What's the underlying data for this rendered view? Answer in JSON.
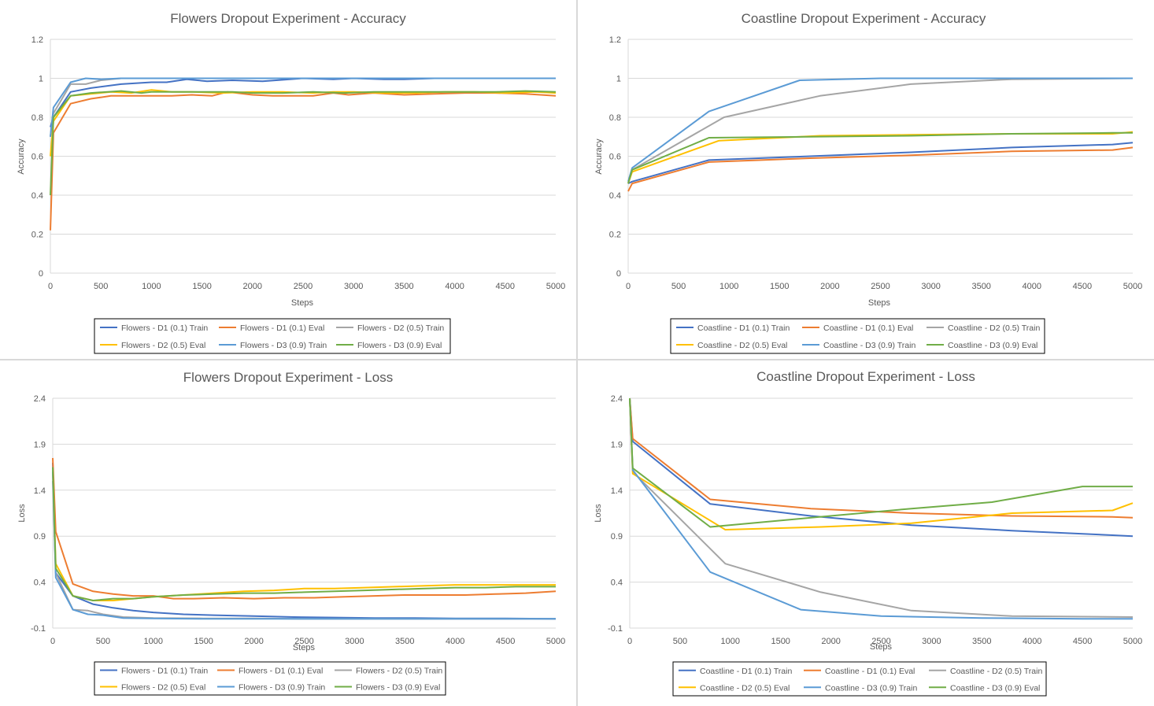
{
  "colors": {
    "d1_train": "#4472C4",
    "d1_eval": "#ED7D31",
    "d2_train": "#A5A5A5",
    "d2_eval": "#FFC000",
    "d3_train": "#5B9BD5",
    "d3_eval": "#70AD47",
    "grid": "#d9d9d9",
    "text": "#595959"
  },
  "chart_data": [
    {
      "type": "line",
      "title": "Flowers Dropout Experiment - Accuracy",
      "xlabel": "Steps",
      "ylabel": "Accuracy",
      "xlim": [
        0,
        5000
      ],
      "ylim": [
        0,
        1.2
      ],
      "xticks": [
        0,
        500,
        1000,
        1500,
        2000,
        2500,
        3000,
        3500,
        4000,
        4500,
        5000
      ],
      "yticks": [
        0,
        0.2,
        0.4,
        0.6,
        0.8,
        1,
        1.2
      ],
      "yticklabels": [
        "0",
        "0.2",
        "0.4",
        "0.6",
        "0.8",
        "1",
        "1.2"
      ],
      "legend_position": "bottom",
      "grid": true,
      "series": [
        {
          "name": "Flowers - D1 (0.1) Train",
          "color_key": "d1_train",
          "x": [
            0,
            30,
            200,
            400,
            700,
            1000,
            1150,
            1350,
            1550,
            1800,
            2100,
            2500,
            2800,
            3000,
            3300,
            3500,
            3800,
            4200,
            4600,
            5000
          ],
          "y": [
            0.75,
            0.8,
            0.93,
            0.95,
            0.97,
            0.98,
            0.98,
            0.995,
            0.985,
            0.99,
            0.985,
            1.0,
            0.995,
            1.0,
            0.995,
            0.995,
            1.0,
            1.0,
            1.0,
            1.0
          ]
        },
        {
          "name": "Flowers - D1 (0.1) Eval",
          "color_key": "d1_eval",
          "x": [
            0,
            30,
            200,
            400,
            600,
            800,
            1000,
            1200,
            1400,
            1600,
            1750,
            2000,
            2200,
            2400,
            2600,
            2800,
            2950,
            3200,
            3500,
            3800,
            4100,
            4400,
            4700,
            5000
          ],
          "y": [
            0.22,
            0.72,
            0.87,
            0.895,
            0.91,
            0.91,
            0.91,
            0.91,
            0.915,
            0.91,
            0.93,
            0.915,
            0.91,
            0.91,
            0.91,
            0.925,
            0.915,
            0.925,
            0.915,
            0.92,
            0.925,
            0.925,
            0.92,
            0.91
          ]
        },
        {
          "name": "Flowers - D2 (0.5) Train",
          "color_key": "d2_train",
          "x": [
            0,
            30,
            200,
            350,
            500,
            700,
            900,
            1200,
            1500,
            2000,
            2500,
            3000,
            3500,
            4000,
            4500,
            5000
          ],
          "y": [
            0.7,
            0.82,
            0.97,
            0.97,
            0.99,
            1.0,
            1.0,
            1.0,
            1.0,
            1.0,
            1.0,
            1.0,
            1.0,
            1.0,
            1.0,
            1.0
          ]
        },
        {
          "name": "Flowers - D2 (0.5) Eval",
          "color_key": "d2_eval",
          "x": [
            0,
            30,
            200,
            400,
            600,
            800,
            1000,
            1200,
            1400,
            1700,
            2000,
            2300,
            2600,
            2800,
            3000,
            3300,
            3600,
            3900,
            4200,
            4500,
            4800,
            5000
          ],
          "y": [
            0.6,
            0.78,
            0.91,
            0.92,
            0.93,
            0.925,
            0.94,
            0.93,
            0.93,
            0.925,
            0.93,
            0.93,
            0.925,
            0.93,
            0.93,
            0.925,
            0.925,
            0.93,
            0.93,
            0.925,
            0.93,
            0.925
          ]
        },
        {
          "name": "Flowers - D3 (0.9) Train",
          "color_key": "d3_train",
          "x": [
            0,
            30,
            200,
            350,
            500,
            700,
            1000,
            1500,
            2000,
            2500,
            3000,
            3500,
            4000,
            4500,
            5000
          ],
          "y": [
            0.7,
            0.85,
            0.98,
            1.0,
            0.995,
            1.0,
            1.0,
            1.0,
            1.0,
            1.0,
            1.0,
            1.0,
            1.0,
            1.0,
            1.0
          ]
        },
        {
          "name": "Flowers - D3 (0.9) Eval",
          "color_key": "d3_eval",
          "x": [
            0,
            30,
            200,
            400,
            700,
            900,
            1000,
            1200,
            1500,
            1800,
            2000,
            2300,
            2600,
            2900,
            3200,
            3500,
            3800,
            4100,
            4400,
            4700,
            5000
          ],
          "y": [
            0.4,
            0.8,
            0.91,
            0.925,
            0.935,
            0.925,
            0.93,
            0.93,
            0.93,
            0.93,
            0.925,
            0.925,
            0.93,
            0.925,
            0.93,
            0.93,
            0.93,
            0.93,
            0.93,
            0.935,
            0.93
          ]
        }
      ]
    },
    {
      "type": "line",
      "title": "Coastline Dropout Experiment - Accuracy",
      "xlabel": "Steps",
      "ylabel": "Accuracy",
      "xlim": [
        0,
        5000
      ],
      "ylim": [
        0,
        1.2
      ],
      "xticks": [
        0,
        500,
        1000,
        1500,
        2000,
        2500,
        3000,
        3500,
        4000,
        4500,
        5000
      ],
      "yticks": [
        0,
        0.2,
        0.4,
        0.6,
        0.8,
        1,
        1.2
      ],
      "yticklabels": [
        "0",
        "0.2",
        "0.4",
        "0.6",
        "0.8",
        "1",
        "1.2"
      ],
      "legend_position": "bottom",
      "grid": true,
      "series": [
        {
          "name": "Coastline - D1 (0.1) Train",
          "color_key": "d1_train",
          "x": [
            0,
            40,
            800,
            1800,
            2800,
            3800,
            4800,
            5000
          ],
          "y": [
            0.46,
            0.47,
            0.58,
            0.6,
            0.62,
            0.645,
            0.66,
            0.67
          ]
        },
        {
          "name": "Coastline - D1 (0.1) Eval",
          "color_key": "d1_eval",
          "x": [
            0,
            40,
            800,
            1800,
            2800,
            3800,
            4800,
            5000
          ],
          "y": [
            0.42,
            0.46,
            0.57,
            0.59,
            0.605,
            0.625,
            0.632,
            0.645
          ]
        },
        {
          "name": "Coastline - D2 (0.5) Train",
          "color_key": "d2_train",
          "x": [
            0,
            40,
            950,
            1900,
            2800,
            3800,
            5000
          ],
          "y": [
            0.46,
            0.53,
            0.8,
            0.91,
            0.97,
            0.995,
            1.0
          ]
        },
        {
          "name": "Coastline - D2 (0.5) Eval",
          "color_key": "d2_eval",
          "x": [
            0,
            40,
            900,
            1900,
            2800,
            3800,
            4800,
            5000
          ],
          "y": [
            0.46,
            0.52,
            0.68,
            0.705,
            0.71,
            0.715,
            0.715,
            0.725
          ]
        },
        {
          "name": "Coastline - D3 (0.9) Train",
          "color_key": "d3_train",
          "x": [
            0,
            40,
            800,
            1700,
            2500,
            3500,
            4500,
            5000
          ],
          "y": [
            0.47,
            0.54,
            0.83,
            0.99,
            1.0,
            1.0,
            1.0,
            1.0
          ]
        },
        {
          "name": "Coastline - D3 (0.9) Eval",
          "color_key": "d3_eval",
          "x": [
            0,
            40,
            800,
            1800,
            2800,
            3800,
            4800,
            5000
          ],
          "y": [
            0.46,
            0.53,
            0.695,
            0.7,
            0.705,
            0.715,
            0.72,
            0.72
          ]
        }
      ]
    },
    {
      "type": "line",
      "title": "Flowers Dropout Experiment - Loss",
      "xlabel": "Steps",
      "ylabel": "Loss",
      "xlim": [
        0,
        5000
      ],
      "ylim": [
        -0.1,
        2.4
      ],
      "xticks": [
        0,
        500,
        1000,
        1500,
        2000,
        2500,
        3000,
        3500,
        4000,
        4500,
        5000
      ],
      "yticks": [
        -0.1,
        0.4,
        0.9,
        1.4,
        1.9,
        2.4
      ],
      "yticklabels": [
        "-0.1",
        "0.4",
        "0.9",
        "1.4",
        "1.9",
        "2.4"
      ],
      "legend_position": "bottom",
      "grid": true,
      "series": [
        {
          "name": "Flowers - D1 (0.1) Train",
          "color_key": "d1_train",
          "x": [
            0,
            30,
            200,
            400,
            600,
            800,
            1000,
            1300,
            1600,
            2000,
            2400,
            2800,
            3200,
            3600,
            4000,
            4500,
            5000
          ],
          "y": [
            1.7,
            0.5,
            0.25,
            0.16,
            0.12,
            0.09,
            0.07,
            0.05,
            0.04,
            0.03,
            0.02,
            0.015,
            0.01,
            0.01,
            0.005,
            0.005,
            0.0
          ]
        },
        {
          "name": "Flowers - D1 (0.1) Eval",
          "color_key": "d1_eval",
          "x": [
            0,
            30,
            200,
            400,
            600,
            800,
            1000,
            1200,
            1400,
            1700,
            2000,
            2300,
            2600,
            2900,
            3200,
            3500,
            3800,
            4100,
            4400,
            4700,
            5000
          ],
          "y": [
            1.75,
            0.95,
            0.38,
            0.3,
            0.27,
            0.25,
            0.25,
            0.22,
            0.22,
            0.23,
            0.22,
            0.23,
            0.23,
            0.24,
            0.25,
            0.26,
            0.26,
            0.26,
            0.27,
            0.28,
            0.3
          ]
        },
        {
          "name": "Flowers - D2 (0.5) Train",
          "color_key": "d2_train",
          "x": [
            0,
            30,
            200,
            350,
            500,
            700,
            1000,
            1500,
            2000,
            2500,
            3000,
            3500,
            4000,
            4500,
            5000
          ],
          "y": [
            1.5,
            0.5,
            0.1,
            0.09,
            0.05,
            0.02,
            0.01,
            0.005,
            0.005,
            0.0,
            0.0,
            0.0,
            0.0,
            0.0,
            0.0
          ]
        },
        {
          "name": "Flowers - D2 (0.5) Eval",
          "color_key": "d2_eval",
          "x": [
            0,
            30,
            200,
            400,
            600,
            800,
            1000,
            1300,
            1600,
            1900,
            2200,
            2500,
            2800,
            3100,
            3400,
            3700,
            4000,
            4300,
            4600,
            5000
          ],
          "y": [
            1.6,
            0.6,
            0.25,
            0.2,
            0.2,
            0.22,
            0.24,
            0.26,
            0.28,
            0.3,
            0.31,
            0.33,
            0.33,
            0.34,
            0.35,
            0.36,
            0.37,
            0.37,
            0.37,
            0.37
          ]
        },
        {
          "name": "Flowers - D3 (0.9) Train",
          "color_key": "d3_train",
          "x": [
            0,
            30,
            200,
            350,
            500,
            700,
            1000,
            1500,
            2000,
            2500,
            3000,
            3500,
            4000,
            4500,
            5000
          ],
          "y": [
            1.6,
            0.45,
            0.1,
            0.05,
            0.04,
            0.01,
            0.005,
            0.0,
            0.0,
            0.0,
            0.0,
            0.0,
            0.0,
            0.0,
            0.0
          ]
        },
        {
          "name": "Flowers - D3 (0.9) Eval",
          "color_key": "d3_eval",
          "x": [
            0,
            30,
            200,
            400,
            600,
            800,
            1000,
            1300,
            1600,
            1900,
            2200,
            2500,
            2800,
            3100,
            3400,
            3700,
            4000,
            4300,
            4600,
            5000
          ],
          "y": [
            1.65,
            0.55,
            0.25,
            0.2,
            0.22,
            0.22,
            0.24,
            0.26,
            0.27,
            0.28,
            0.28,
            0.29,
            0.3,
            0.31,
            0.32,
            0.33,
            0.34,
            0.34,
            0.35,
            0.35
          ]
        }
      ]
    },
    {
      "type": "line",
      "title": "Coastline Dropout Experiment - Loss",
      "xlabel": "Steps",
      "ylabel": "Loss",
      "xlim": [
        0,
        5000
      ],
      "ylim": [
        -0.1,
        2.4
      ],
      "xticks": [
        0,
        500,
        1000,
        1500,
        2000,
        2500,
        3000,
        3500,
        4000,
        4500,
        5000
      ],
      "yticks": [
        -0.1,
        0.4,
        0.9,
        1.4,
        1.9,
        2.4
      ],
      "yticklabels": [
        "-0.1",
        "0.4",
        "0.9",
        "1.4",
        "1.9",
        "2.4"
      ],
      "legend_position": "bottom",
      "grid": true,
      "series": [
        {
          "name": "Coastline - D1 (0.1) Train",
          "color_key": "d1_train",
          "x": [
            0,
            30,
            800,
            1800,
            2800,
            3800,
            4800,
            5000
          ],
          "y": [
            2.4,
            1.93,
            1.25,
            1.12,
            1.02,
            0.96,
            0.91,
            0.9
          ]
        },
        {
          "name": "Coastline - D1 (0.1) Eval",
          "color_key": "d1_eval",
          "x": [
            0,
            30,
            800,
            1800,
            2800,
            3800,
            4800,
            5000
          ],
          "y": [
            2.4,
            1.96,
            1.3,
            1.2,
            1.15,
            1.12,
            1.11,
            1.1
          ]
        },
        {
          "name": "Coastline - D2 (0.5) Train",
          "color_key": "d2_train",
          "x": [
            0,
            30,
            950,
            1900,
            2800,
            3800,
            5000
          ],
          "y": [
            2.4,
            1.6,
            0.6,
            0.29,
            0.09,
            0.03,
            0.02
          ]
        },
        {
          "name": "Coastline - D2 (0.5) Eval",
          "color_key": "d2_eval",
          "x": [
            0,
            30,
            950,
            1900,
            2800,
            3800,
            4800,
            5000
          ],
          "y": [
            2.4,
            1.58,
            0.97,
            1.0,
            1.04,
            1.15,
            1.18,
            1.26
          ]
        },
        {
          "name": "Coastline - D3 (0.9) Train",
          "color_key": "d3_train",
          "x": [
            0,
            30,
            800,
            1700,
            2500,
            3500,
            4500,
            5000
          ],
          "y": [
            2.4,
            1.62,
            0.51,
            0.1,
            0.03,
            0.01,
            0.0,
            0.0
          ]
        },
        {
          "name": "Coastline - D3 (0.9) Eval",
          "color_key": "d3_eval",
          "x": [
            0,
            30,
            800,
            1800,
            2800,
            3600,
            4500,
            5000
          ],
          "y": [
            2.4,
            1.64,
            1.0,
            1.1,
            1.2,
            1.27,
            1.44,
            1.44
          ]
        }
      ]
    }
  ]
}
